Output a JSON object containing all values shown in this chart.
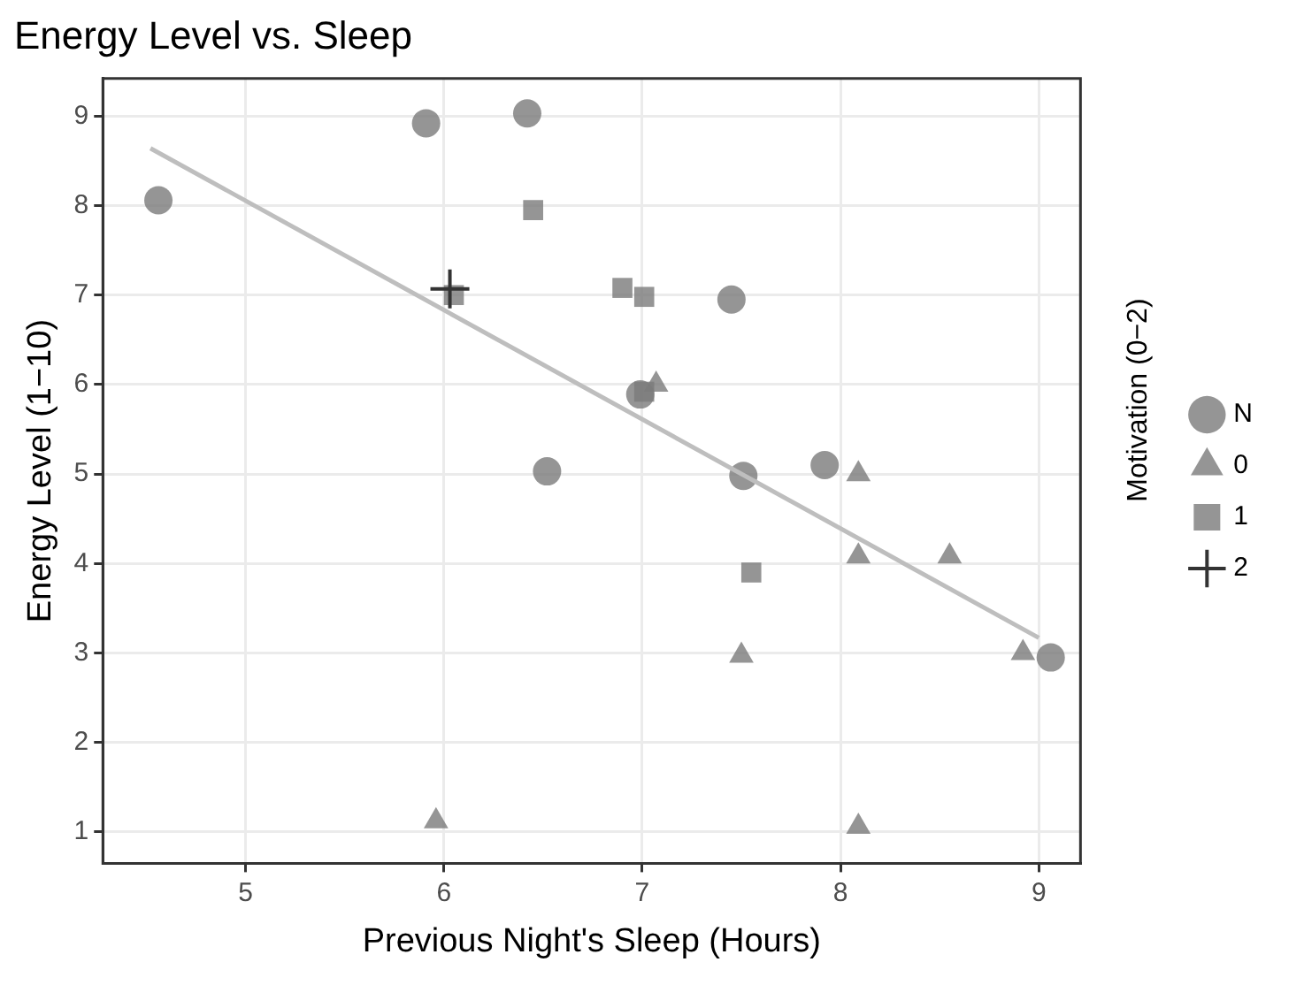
{
  "chart_data": {
    "type": "scatter",
    "title": "Energy Level vs. Sleep",
    "xlabel": "Previous Night's Sleep (Hours)",
    "ylabel": "Energy Level (1−10)",
    "legend_title": "Motivation (0−2)",
    "legend": "right",
    "grid": true,
    "xlim": [
      4.28,
      9.21
    ],
    "xticks": [
      5,
      6,
      7,
      8,
      9
    ],
    "ylim": [
      0.65,
      9.42
    ],
    "yticks": [
      1,
      2,
      3,
      4,
      5,
      6,
      7,
      8,
      9
    ],
    "series": [
      {
        "name": "N",
        "color": "#7b7b7b",
        "marker": "circle",
        "x": [
          4.56,
          5.91,
          6.42,
          6.52,
          6.99,
          7.45,
          7.51,
          7.92,
          9.06
        ],
        "values": [
          8.06,
          8.92,
          9.03,
          5.03,
          5.89,
          6.95,
          4.98,
          5.1,
          2.95
        ]
      },
      {
        "name": "0",
        "color": "#7b7b7b",
        "marker": "triangle",
        "x": [
          7.07,
          8.09,
          8.09,
          8.55,
          7.5,
          8.92,
          8.09,
          5.96
        ],
        "values": [
          6.0,
          5.0,
          4.08,
          4.08,
          2.97,
          3.0,
          1.06,
          1.12
        ]
      },
      {
        "name": "1",
        "color": "#7b7b7b",
        "marker": "square",
        "x": [
          6.45,
          6.05,
          6.9,
          7.01,
          7.01,
          7.55
        ],
        "values": [
          7.95,
          7.0,
          7.08,
          6.98,
          5.92,
          3.9
        ]
      },
      {
        "name": "2",
        "color": "#333333",
        "marker": "cross",
        "x": [
          6.03
        ],
        "values": [
          7.07
        ]
      },
      {
        "type": "line",
        "color": "#bebebe",
        "marker": "none",
        "x": [
          4.52,
          9.0
        ],
        "values": [
          8.64,
          3.17
        ]
      }
    ]
  }
}
